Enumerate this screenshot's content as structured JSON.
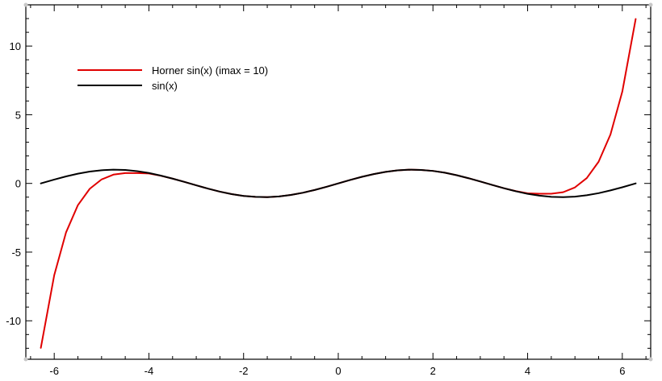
{
  "chart_data": {
    "type": "line",
    "title": "",
    "xlabel": "",
    "ylabel": "",
    "xlim": [
      -6.6,
      6.6
    ],
    "ylim": [
      -12.8,
      13.0
    ],
    "xticks": [
      -6,
      -4,
      -2,
      0,
      2,
      4,
      6
    ],
    "xtick_labels": [
      "-6",
      "-4",
      "-2",
      "0",
      "2",
      "4",
      "6"
    ],
    "yticks": [
      -10,
      -5,
      0,
      5,
      10
    ],
    "ytick_labels": [
      "-10",
      "-5",
      "0",
      "5",
      "10"
    ],
    "x_minor_step": 0.5,
    "y_minor_step": 1,
    "grid": false,
    "legend_position": "top-left",
    "series": [
      {
        "name": "Horner sin(x) (imax = 10)",
        "color": "#e00000",
        "x": [
          -6.283,
          -6.0,
          -5.75,
          -5.5,
          -5.25,
          -5.0,
          -4.75,
          -4.5,
          -4.25,
          -4.0,
          -3.75,
          -3.5,
          -3.25,
          -3.0,
          -2.75,
          -2.5,
          -2.25,
          -2.0,
          -1.75,
          -1.5,
          -1.25,
          -1.0,
          -0.75,
          -0.5,
          -0.25,
          0.0,
          0.25,
          0.5,
          0.75,
          1.0,
          1.25,
          1.5,
          1.75,
          2.0,
          2.25,
          2.5,
          2.75,
          3.0,
          3.25,
          3.5,
          3.75,
          4.0,
          4.25,
          4.5,
          4.75,
          5.0,
          5.25,
          5.5,
          5.75,
          6.0,
          6.283
        ],
        "y": [
          -11.97,
          -6.68,
          -3.56,
          -1.58,
          -0.39,
          0.29,
          0.64,
          0.75,
          0.75,
          0.72,
          0.56,
          0.35,
          0.11,
          -0.14,
          -0.38,
          -0.6,
          -0.78,
          -0.91,
          -0.98,
          -1.0,
          -0.95,
          -0.84,
          -0.68,
          -0.48,
          -0.25,
          0.0,
          0.25,
          0.48,
          0.68,
          0.84,
          0.95,
          1.0,
          0.98,
          0.91,
          0.78,
          0.6,
          0.38,
          0.14,
          -0.11,
          -0.35,
          -0.56,
          -0.72,
          -0.75,
          -0.75,
          -0.64,
          -0.29,
          0.39,
          1.58,
          3.56,
          6.68,
          11.97
        ]
      },
      {
        "name": "sin(x)",
        "color": "#000000",
        "x": [
          -6.283,
          -6.0,
          -5.75,
          -5.5,
          -5.25,
          -5.0,
          -4.75,
          -4.5,
          -4.25,
          -4.0,
          -3.75,
          -3.5,
          -3.25,
          -3.0,
          -2.75,
          -2.5,
          -2.25,
          -2.0,
          -1.75,
          -1.5,
          -1.25,
          -1.0,
          -0.75,
          -0.5,
          -0.25,
          0.0,
          0.25,
          0.5,
          0.75,
          1.0,
          1.25,
          1.5,
          1.75,
          2.0,
          2.25,
          2.5,
          2.75,
          3.0,
          3.25,
          3.5,
          3.75,
          4.0,
          4.25,
          4.5,
          4.75,
          5.0,
          5.25,
          5.5,
          5.75,
          6.0,
          6.283
        ],
        "y": [
          0.0,
          0.28,
          0.51,
          0.71,
          0.86,
          0.96,
          1.0,
          0.98,
          0.89,
          0.76,
          0.57,
          0.35,
          0.11,
          -0.14,
          -0.38,
          -0.6,
          -0.78,
          -0.91,
          -0.98,
          -1.0,
          -0.95,
          -0.84,
          -0.68,
          -0.48,
          -0.25,
          0.0,
          0.25,
          0.48,
          0.68,
          0.84,
          0.95,
          1.0,
          0.98,
          0.91,
          0.78,
          0.6,
          0.38,
          0.14,
          -0.11,
          -0.35,
          -0.57,
          -0.76,
          -0.89,
          -0.98,
          -1.0,
          -0.96,
          -0.86,
          -0.71,
          -0.51,
          -0.28,
          0.0
        ]
      }
    ]
  }
}
